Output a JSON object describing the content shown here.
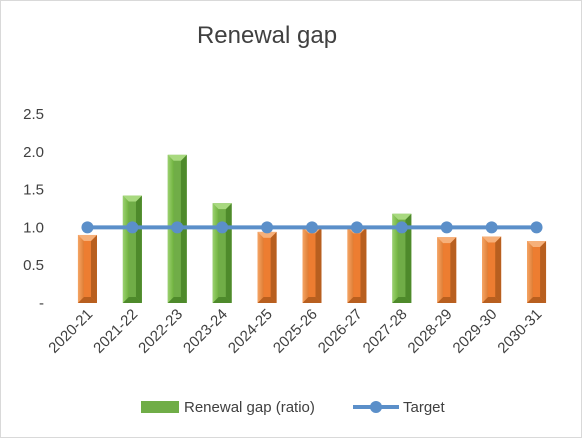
{
  "chart_data": {
    "type": "bar",
    "title": "Renewal gap",
    "xlabel": "",
    "ylabel": "",
    "categories": [
      "2020-21",
      "2021-22",
      "2022-23",
      "2023-24",
      "2024-25",
      "2025-26",
      "2026-27",
      "2027-28",
      "2028-29",
      "2029-30",
      "2030-31"
    ],
    "series": [
      {
        "name": "Renewal gap (ratio)",
        "type": "bar",
        "values": [
          0.9,
          1.42,
          1.96,
          1.32,
          0.94,
          1.0,
          1.0,
          1.18,
          0.87,
          0.88,
          0.82
        ]
      },
      {
        "name": "Target",
        "type": "line",
        "values": [
          1.0,
          1.0,
          1.0,
          1.0,
          1.0,
          1.0,
          1.0,
          1.0,
          1.0,
          1.0,
          1.0
        ]
      }
    ],
    "y_ticks": [
      "-",
      "0.5",
      "1.0",
      "1.5",
      "2.0",
      "2.5"
    ],
    "ylim": [
      0,
      2.5
    ],
    "grid": false,
    "legend_position": "bottom",
    "colors": {
      "above_target_bar": "#70ad47",
      "below_target_bar": "#ed7d31",
      "target_line": "#5b8fc9"
    }
  }
}
